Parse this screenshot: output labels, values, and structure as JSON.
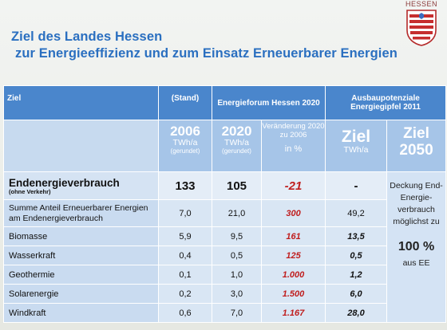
{
  "title": {
    "line1": "Ziel des Landes Hessen",
    "line2": "zur Energieeffizienz und zum Einsatz Erneuerbarer Energien"
  },
  "logo": {
    "word": "HESSEN",
    "icon": "hessen-coat-of-arms-icon"
  },
  "table": {
    "headers": {
      "ziel": "Ziel",
      "stand": "(Stand)",
      "forum": "Energieforum Hessen 2020",
      "gipfel": "Ausbaupotenziale Energiegipfel 2011"
    },
    "subheaders": {
      "y2006": "2006",
      "u2006": "TWh/a",
      "g2006": "(gerundet)",
      "y2020": "2020",
      "u2020": "TWh/a",
      "g2020": "(gerundet)",
      "change": "Veränderung 2020 zu 2006",
      "pct": "in %",
      "ziel": "Ziel",
      "ziel_unit": "TWh/a",
      "ziel2": "Ziel",
      "ziel2_year": "2050"
    },
    "endenergie": {
      "label": "Endenergieverbrauch",
      "sublabel": "(ohne Verkehr)",
      "v2006": "133",
      "v2020": "105",
      "change": "-21",
      "ziel": "-"
    },
    "summe": {
      "label": "Summe Anteil Erneuerbarer Energien am Endenergieverbrauch",
      "v2006": "7,0",
      "v2020": "21,0",
      "change": "300",
      "ziel": "49,2"
    },
    "rows": [
      {
        "label": "Biomasse",
        "v2006": "5,9",
        "v2020": "9,5",
        "change": "161",
        "ziel": "13,5"
      },
      {
        "label": "Wasserkraft",
        "v2006": "0,4",
        "v2020": "0,5",
        "change": "125",
        "ziel": "0,5"
      },
      {
        "label": "Geothermie",
        "v2006": "0,1",
        "v2020": "1,0",
        "change": "1.000",
        "ziel": "1,2"
      },
      {
        "label": "Solarenergie",
        "v2006": "0,2",
        "v2020": "3,0",
        "change": "1.500",
        "ziel": "6,0"
      },
      {
        "label": "Windkraft",
        "v2006": "0,6",
        "v2020": "7,0",
        "change": "1.167",
        "ziel": "28,0"
      }
    ],
    "note": {
      "text": "Deckung End-Energie-verbrauch möglichst zu",
      "pct": "100 %",
      "suffix": "aus EE"
    }
  },
  "colors": {
    "title": "#2a6fc0",
    "header_bg": "#4a86cc",
    "subheader_bg": "#a6c5e8",
    "body_bg": "#d9e6f4",
    "accent_red": "#c01e1e"
  }
}
